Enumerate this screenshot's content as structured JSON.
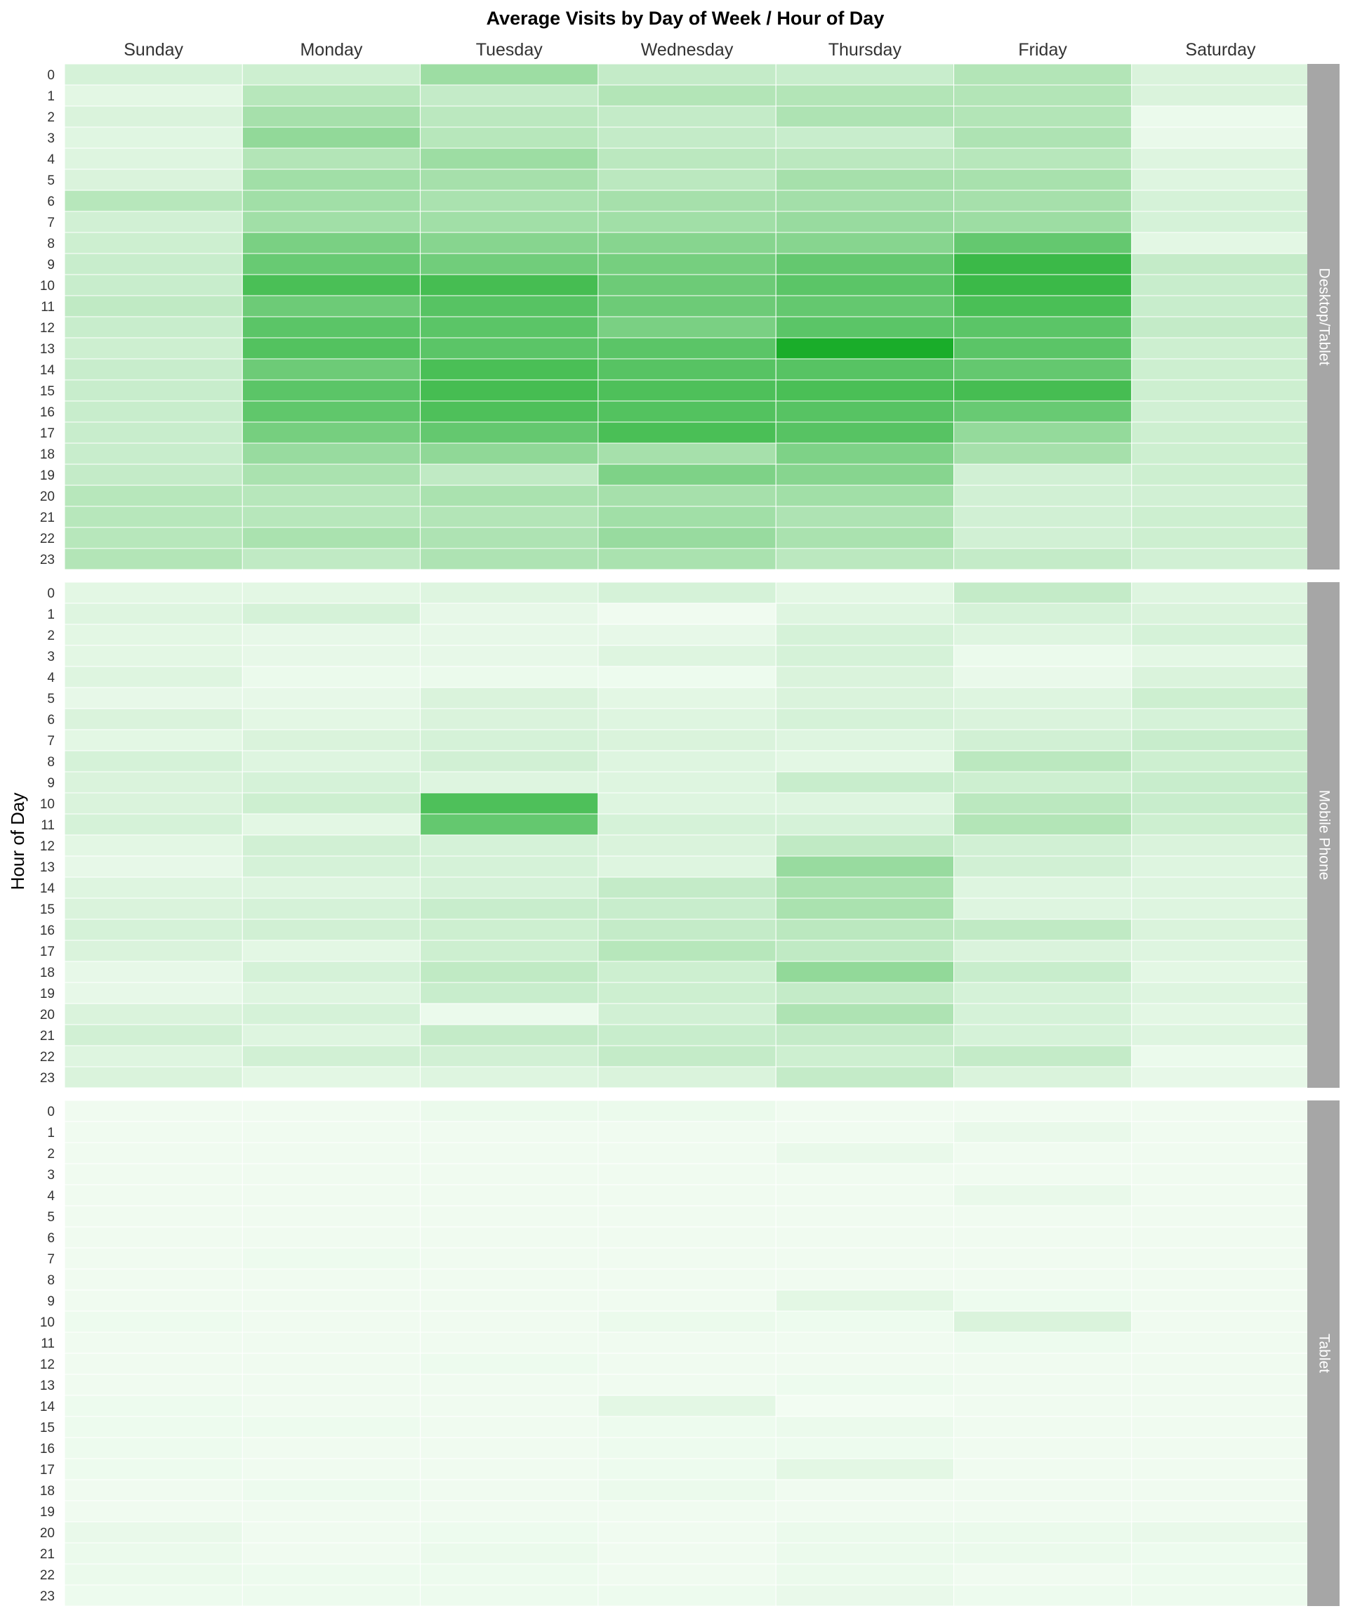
{
  "chart_data": {
    "type": "heatmap",
    "title": "Average Visits by Day of Week / Hour of Day",
    "ylabel": "Hour of Day",
    "xlabel": "",
    "days": [
      "Sunday",
      "Monday",
      "Tuesday",
      "Wednesday",
      "Thursday",
      "Friday",
      "Saturday"
    ],
    "hours": [
      "0",
      "1",
      "2",
      "3",
      "4",
      "5",
      "6",
      "7",
      "8",
      "9",
      "10",
      "11",
      "12",
      "13",
      "14",
      "15",
      "16",
      "17",
      "18",
      "19",
      "20",
      "21",
      "22",
      "23"
    ],
    "value_scale": [
      0,
      100
    ],
    "colors": {
      "low": "#f4fdf4",
      "high": "#1aad2a",
      "strip": "#a6a6a6"
    },
    "grid": false,
    "panels": [
      {
        "name": "Desktop/Tablet",
        "values": [
          [
            14,
            18,
            40,
            22,
            20,
            30,
            12
          ],
          [
            8,
            28,
            22,
            30,
            30,
            30,
            12
          ],
          [
            12,
            36,
            26,
            22,
            32,
            30,
            4
          ],
          [
            9,
            45,
            28,
            22,
            20,
            32,
            5
          ],
          [
            10,
            30,
            40,
            26,
            26,
            28,
            10
          ],
          [
            12,
            38,
            36,
            26,
            36,
            35,
            10
          ],
          [
            28,
            38,
            34,
            36,
            37,
            36,
            14
          ],
          [
            16,
            38,
            38,
            38,
            42,
            40,
            14
          ],
          [
            18,
            56,
            50,
            50,
            50,
            66,
            8
          ],
          [
            20,
            64,
            60,
            58,
            66,
            85,
            22
          ],
          [
            20,
            78,
            80,
            62,
            70,
            85,
            20
          ],
          [
            24,
            62,
            72,
            62,
            66,
            78,
            20
          ],
          [
            20,
            70,
            70,
            56,
            70,
            70,
            22
          ],
          [
            18,
            74,
            70,
            70,
            100,
            70,
            18
          ],
          [
            20,
            62,
            78,
            72,
            72,
            66,
            18
          ],
          [
            20,
            70,
            80,
            76,
            78,
            80,
            18
          ],
          [
            20,
            68,
            76,
            74,
            72,
            64,
            16
          ],
          [
            20,
            58,
            66,
            78,
            72,
            44,
            18
          ],
          [
            20,
            42,
            46,
            36,
            54,
            36,
            18
          ],
          [
            22,
            34,
            24,
            54,
            50,
            16,
            18
          ],
          [
            28,
            28,
            34,
            36,
            38,
            16,
            16
          ],
          [
            28,
            28,
            30,
            38,
            32,
            16,
            18
          ],
          [
            28,
            34,
            32,
            42,
            34,
            16,
            18
          ],
          [
            30,
            24,
            32,
            34,
            26,
            22,
            16
          ]
        ]
      },
      {
        "name": "Mobile Phone",
        "values": [
          [
            8,
            8,
            10,
            14,
            8,
            22,
            10
          ],
          [
            10,
            14,
            6,
            2,
            10,
            14,
            12
          ],
          [
            8,
            6,
            6,
            6,
            14,
            10,
            14
          ],
          [
            8,
            6,
            6,
            10,
            14,
            4,
            8
          ],
          [
            10,
            4,
            4,
            3,
            12,
            5,
            12
          ],
          [
            6,
            6,
            12,
            8,
            12,
            10,
            18
          ],
          [
            12,
            8,
            12,
            10,
            14,
            12,
            14
          ],
          [
            8,
            12,
            14,
            12,
            10,
            16,
            20
          ],
          [
            14,
            10,
            16,
            10,
            8,
            26,
            18
          ],
          [
            12,
            14,
            10,
            10,
            20,
            18,
            20
          ],
          [
            12,
            18,
            76,
            10,
            10,
            26,
            20
          ],
          [
            14,
            8,
            66,
            14,
            14,
            30,
            18
          ],
          [
            8,
            16,
            14,
            12,
            24,
            16,
            12
          ],
          [
            6,
            14,
            14,
            10,
            42,
            16,
            10
          ],
          [
            10,
            10,
            14,
            22,
            34,
            10,
            10
          ],
          [
            12,
            14,
            20,
            20,
            34,
            10,
            10
          ],
          [
            14,
            16,
            18,
            22,
            26,
            24,
            12
          ],
          [
            12,
            8,
            18,
            28,
            24,
            12,
            10
          ],
          [
            6,
            14,
            24,
            18,
            45,
            20,
            8
          ],
          [
            6,
            10,
            20,
            18,
            22,
            14,
            10
          ],
          [
            12,
            14,
            4,
            16,
            32,
            14,
            8
          ],
          [
            16,
            10,
            22,
            20,
            22,
            14,
            10
          ],
          [
            10,
            16,
            16,
            22,
            18,
            22,
            4
          ],
          [
            12,
            8,
            10,
            12,
            22,
            12,
            6
          ]
        ]
      },
      {
        "name": "Tablet",
        "values": [
          [
            2,
            2,
            4,
            4,
            2,
            2,
            2
          ],
          [
            2,
            2,
            2,
            2,
            2,
            5,
            2
          ],
          [
            2,
            2,
            2,
            2,
            5,
            2,
            2
          ],
          [
            2,
            2,
            2,
            2,
            2,
            2,
            2
          ],
          [
            2,
            2,
            2,
            2,
            2,
            5,
            2
          ],
          [
            2,
            2,
            2,
            2,
            2,
            2,
            2
          ],
          [
            2,
            2,
            2,
            2,
            2,
            2,
            2
          ],
          [
            2,
            3,
            2,
            2,
            2,
            2,
            2
          ],
          [
            2,
            2,
            2,
            2,
            2,
            2,
            2
          ],
          [
            2,
            2,
            2,
            2,
            8,
            3,
            2
          ],
          [
            3,
            2,
            2,
            4,
            3,
            12,
            2
          ],
          [
            2,
            2,
            2,
            2,
            2,
            3,
            2
          ],
          [
            2,
            2,
            3,
            2,
            2,
            2,
            2
          ],
          [
            2,
            2,
            2,
            2,
            3,
            2,
            2
          ],
          [
            3,
            2,
            2,
            8,
            1,
            2,
            2
          ],
          [
            3,
            3,
            2,
            3,
            4,
            2,
            2
          ],
          [
            3,
            2,
            2,
            3,
            3,
            2,
            2
          ],
          [
            3,
            2,
            2,
            3,
            8,
            2,
            2
          ],
          [
            2,
            3,
            2,
            4,
            2,
            2,
            2
          ],
          [
            2,
            2,
            2,
            2,
            2,
            2,
            2
          ],
          [
            5,
            2,
            3,
            2,
            4,
            4,
            5
          ],
          [
            4,
            2,
            4,
            2,
            4,
            4,
            3
          ],
          [
            4,
            3,
            3,
            2,
            4,
            2,
            3
          ],
          [
            3,
            3,
            3,
            3,
            5,
            3,
            3
          ]
        ]
      }
    ]
  }
}
